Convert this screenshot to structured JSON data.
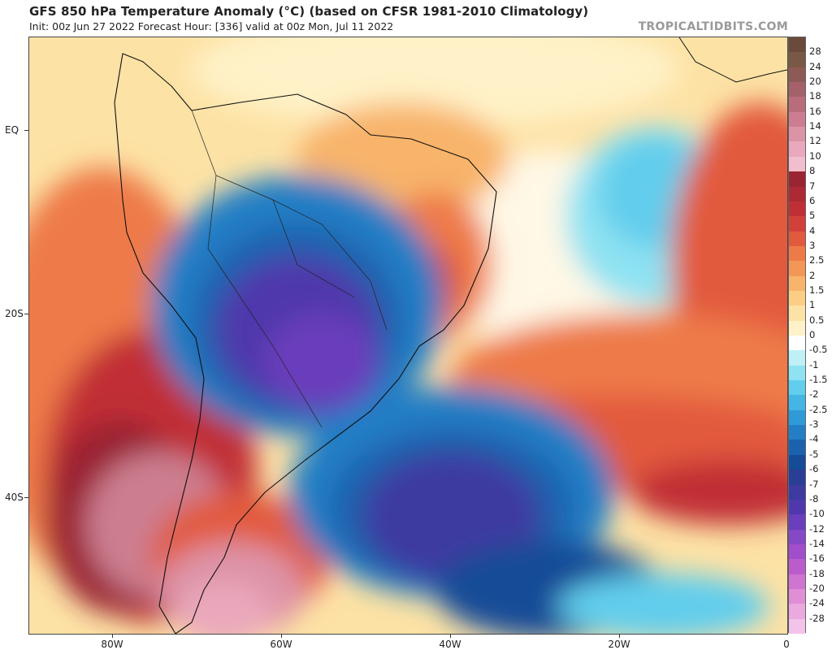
{
  "header": {
    "title": "GFS 850 hPa Temperature Anomaly (°C) (based on CFSR 1981-2010 Climatology)",
    "subtitle": "Init: 00z Jun 27 2022   Forecast Hour: [336]   valid at 00z Mon, Jul 11 2022",
    "brand": "TROPICALTIDBITS.COM"
  },
  "axes": {
    "lat_labels": [
      "EQ",
      "20S",
      "40S"
    ],
    "lon_labels": [
      "80W",
      "60W",
      "40W",
      "20W",
      "0"
    ]
  },
  "colorbar": {
    "labels": [
      "28",
      "24",
      "20",
      "18",
      "16",
      "14",
      "12",
      "10",
      "8",
      "7",
      "6",
      "5",
      "4",
      "3",
      "2.5",
      "2",
      "1.5",
      "1",
      "0.5",
      "0",
      "-0.5",
      "-1",
      "-1.5",
      "-2",
      "-2.5",
      "-3",
      "-4",
      "-5",
      "-6",
      "-7",
      "-8",
      "-10",
      "-12",
      "-14",
      "-16",
      "-18",
      "-20",
      "-24",
      "-28"
    ],
    "colors": [
      "#7a5846",
      "#8e5a55",
      "#a4616a",
      "#b96d7c",
      "#cc7e90",
      "#dd93a6",
      "#eaa8bc",
      "#f2bdcd",
      "#9a2432",
      "#ad2a34",
      "#c12f36",
      "#d3403a",
      "#e25a3e",
      "#ee7a48",
      "#f49656",
      "#f8b46a",
      "#fbcd85",
      "#fde2a5",
      "#fff2c8",
      "#ffffff",
      "#bff0f6",
      "#8ee2f2",
      "#62cdec",
      "#44b5e5",
      "#309ad8",
      "#237ec5",
      "#1a62ad",
      "#164b97",
      "#2a3e96",
      "#3d3aa0",
      "#5038ac",
      "#6a3ebc",
      "#8548c6",
      "#a24ecc",
      "#bb5ccd",
      "#cf74d0",
      "#e08ed6",
      "#eaa9df",
      "#f3c4e9"
    ]
  }
}
